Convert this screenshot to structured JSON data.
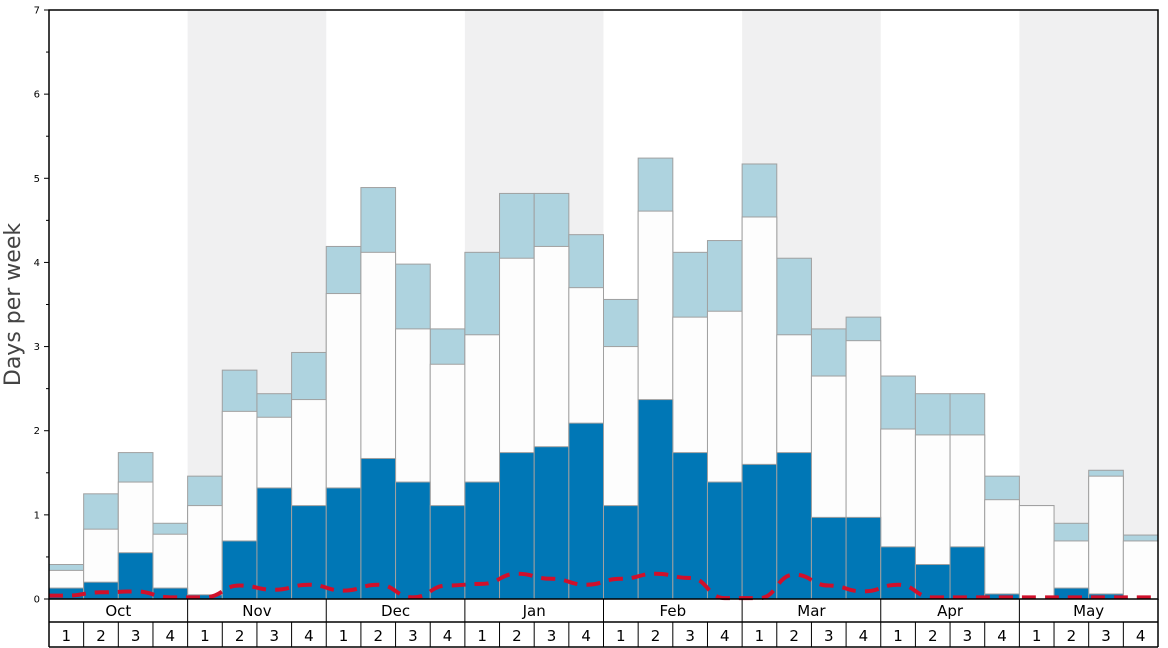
{
  "chart_data": {
    "type": "bar",
    "ylabel": "Days per week",
    "ylim": [
      0,
      7
    ],
    "y_ticks": [
      "0",
      "1",
      "2",
      "3",
      "4",
      "5",
      "6",
      "7"
    ],
    "months": [
      {
        "label": "Oct",
        "weeks": [
          "1",
          "2",
          "3",
          "4"
        ],
        "shaded": false
      },
      {
        "label": "Nov",
        "weeks": [
          "1",
          "2",
          "3",
          "4"
        ],
        "shaded": true
      },
      {
        "label": "Dec",
        "weeks": [
          "1",
          "2",
          "3",
          "4"
        ],
        "shaded": false
      },
      {
        "label": "Jan",
        "weeks": [
          "1",
          "2",
          "3",
          "4"
        ],
        "shaded": true
      },
      {
        "label": "Feb",
        "weeks": [
          "1",
          "2",
          "3",
          "4"
        ],
        "shaded": false
      },
      {
        "label": "Mar",
        "weeks": [
          "1",
          "2",
          "3",
          "4"
        ],
        "shaded": true
      },
      {
        "label": "Apr",
        "weeks": [
          "1",
          "2",
          "3",
          "4"
        ],
        "shaded": false
      },
      {
        "label": "May",
        "weeks": [
          "1",
          "2",
          "3",
          "4"
        ],
        "shaded": true
      }
    ],
    "series": [
      {
        "values": [
          0.13,
          0.2,
          0.55,
          0.13,
          0.05,
          0.69,
          1.32,
          1.11,
          1.32,
          1.67,
          1.39,
          1.11,
          1.39,
          1.74,
          1.81,
          2.09,
          1.11,
          2.37,
          1.74,
          1.39,
          1.6,
          1.74,
          0.97,
          0.97,
          0.62,
          0.41,
          0.62,
          0.06,
          0.0,
          0.13,
          0.06,
          0.0
        ],
        "color": "#0077b6"
      },
      {
        "values": [
          0.34,
          0.83,
          1.39,
          0.77,
          1.11,
          2.23,
          2.16,
          2.37,
          3.63,
          4.12,
          3.21,
          2.79,
          3.14,
          4.05,
          4.19,
          3.7,
          3.0,
          4.61,
          3.35,
          3.42,
          4.54,
          3.14,
          2.65,
          3.07,
          2.02,
          1.95,
          1.95,
          1.18,
          1.11,
          0.69,
          1.46,
          0.69
        ],
        "color": "#fdfdfd"
      },
      {
        "values": [
          0.41,
          1.25,
          1.74,
          0.9,
          1.46,
          2.72,
          2.44,
          2.93,
          4.19,
          4.89,
          3.98,
          3.21,
          4.12,
          4.82,
          4.82,
          4.33,
          3.56,
          5.24,
          4.12,
          4.26,
          5.17,
          4.05,
          3.21,
          3.35,
          2.65,
          2.44,
          2.44,
          1.46,
          1.11,
          0.9,
          1.53,
          0.76
        ],
        "color": "#aed3df"
      },
      {
        "values": [
          0.04,
          0.08,
          0.09,
          0.02,
          0.02,
          0.16,
          0.11,
          0.17,
          0.1,
          0.17,
          0.02,
          0.16,
          0.18,
          0.3,
          0.24,
          0.17,
          0.24,
          0.3,
          0.25,
          0.01,
          0.01,
          0.29,
          0.16,
          0.09,
          0.17,
          0.02,
          0.02,
          0.02,
          0.02,
          0.02,
          0.02,
          0.02
        ],
        "color": "#d0102b",
        "style": "dashed"
      }
    ],
    "colors": {
      "band_shade": "#f0f0f1",
      "frame": "#000000",
      "bar_edge": "#a0a0a0"
    }
  }
}
